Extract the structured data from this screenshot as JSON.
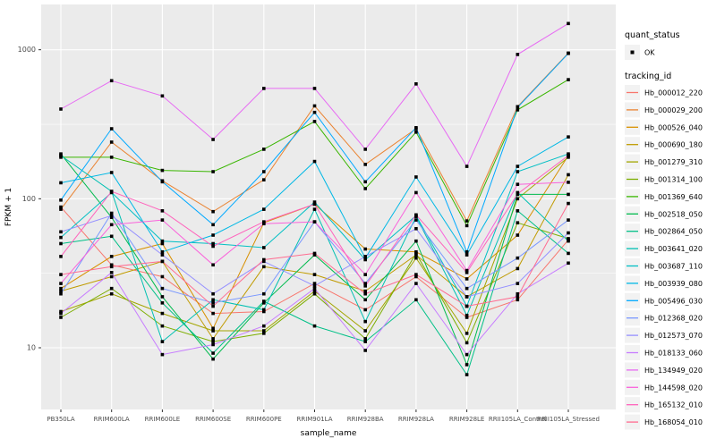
{
  "figure": {
    "xlabel": "sample_name",
    "ylabel": "FPKM + 1"
  },
  "legend": {
    "quant_title": "quant_status",
    "quant_ok_label": "OK",
    "tracking_title": "tracking_id"
  },
  "colors": {
    "panel_bg": "#EBEBEB",
    "grid_major": "#FFFFFF",
    "grid_minor": "#FFFFFF",
    "legend_key_bg": "#F2F2F2",
    "tick_text": "#4D4D4D",
    "axis_title_text": "#000000",
    "point": "#000000"
  },
  "chart_data": {
    "type": "line",
    "title": "",
    "xlabel": "sample_name",
    "ylabel": "FPKM + 1",
    "y_scale": "log10",
    "y_ticks": [
      10,
      100,
      1000
    ],
    "y_minor_ticks": [
      31.6,
      316
    ],
    "ylim": [
      5.5,
      1800
    ],
    "grid": true,
    "legend_position": "right",
    "quant_status": {
      "marker": "black-square",
      "label": "OK"
    },
    "categories": [
      "PB350LA",
      "RRIM600LA",
      "RRIM600LE",
      "RRIM600SE",
      "RRIM600PE",
      "RRIM901LA",
      "RRIM928BA",
      "RRIM928LA",
      "RRIM928LE",
      "RRII105LA_Control",
      "RRII105LA_Stressed"
    ],
    "series": [
      {
        "name": "Hb_000012_220",
        "color": "#F8766D",
        "values": [
          88,
          36,
          30,
          17,
          17.5,
          27,
          18,
          30,
          16,
          21,
          53
        ]
      },
      {
        "name": "Hb_000029_200",
        "color": "#EA8331",
        "values": [
          85,
          240,
          132,
          82,
          134,
          420,
          170,
          295,
          71,
          415,
          950
        ]
      },
      {
        "name": "Hb_000526_040",
        "color": "#D89000",
        "values": [
          25,
          41,
          50,
          13.5,
          69,
          92,
          46,
          44,
          29,
          57,
          195
        ]
      },
      {
        "name": "Hb_000690_180",
        "color": "#C09B00",
        "values": [
          24,
          30,
          38,
          11.5,
          35,
          31,
          24,
          42,
          22,
          34,
          145
        ]
      },
      {
        "name": "Hb_001279_310",
        "color": "#A3A500",
        "values": [
          17.5,
          23,
          17,
          13,
          13,
          24,
          13,
          40,
          12.5,
          100,
          190
        ]
      },
      {
        "name": "Hb_001314_100",
        "color": "#7CAE00",
        "values": [
          16,
          25,
          14,
          11,
          12.5,
          23,
          11.5,
          43,
          10.8,
          69,
          54
        ]
      },
      {
        "name": "Hb_001369_640",
        "color": "#39B600",
        "values": [
          190,
          190,
          155,
          152,
          215,
          330,
          117,
          280,
          66,
          395,
          630
        ]
      },
      {
        "name": "Hb_002518_050",
        "color": "#00BB4E",
        "values": [
          200,
          75,
          22,
          8.4,
          20,
          42,
          21,
          52,
          7.7,
          107,
          107
        ]
      },
      {
        "name": "Hb_002864_050",
        "color": "#00C087",
        "values": [
          50,
          56,
          20,
          9.2,
          20.5,
          14,
          11,
          21,
          6.6,
          83,
          43
        ]
      },
      {
        "name": "Hb_003641_020",
        "color": "#00C0B2",
        "values": [
          195,
          112,
          11,
          21,
          18,
          85,
          15,
          76,
          16.5,
          110,
          52
        ]
      },
      {
        "name": "Hb_003687_110",
        "color": "#00BFC4",
        "values": [
          55,
          110,
          52,
          50,
          47,
          95,
          39,
          77,
          19,
          152,
          200
        ]
      },
      {
        "name": "Hb_003939_080",
        "color": "#00B8E5",
        "values": [
          128,
          150,
          44,
          57,
          85,
          178,
          40,
          140,
          42,
          165,
          260
        ]
      },
      {
        "name": "Hb_005496_030",
        "color": "#00A9FF",
        "values": [
          98,
          295,
          130,
          67,
          152,
          380,
          130,
          300,
          44,
          410,
          945
        ]
      },
      {
        "name": "Hb_012368_020",
        "color": "#7997FF",
        "values": [
          23,
          80,
          25,
          20,
          23,
          70,
          27,
          72,
          25,
          40,
          72
        ]
      },
      {
        "name": "Hb_012573_070",
        "color": "#9590FF",
        "values": [
          60,
          77,
          42,
          23,
          38,
          26,
          41,
          63,
          22,
          27,
          59
        ]
      },
      {
        "name": "Hb_018133_060",
        "color": "#C77CFF",
        "values": [
          17,
          32,
          9,
          10.5,
          14,
          25,
          9.6,
          27,
          9,
          23,
          37
        ]
      },
      {
        "name": "Hb_134949_020",
        "color": "#E76BF3",
        "values": [
          400,
          620,
          490,
          250,
          550,
          550,
          215,
          590,
          165,
          930,
          1500
        ]
      },
      {
        "name": "Hb_144598_020",
        "color": "#FA62DB",
        "values": [
          27,
          67,
          72,
          36,
          68,
          70,
          31,
          110,
          33,
          125,
          129
        ]
      },
      {
        "name": "Hb_165132_010",
        "color": "#FF62BC",
        "values": [
          41,
          112,
          83,
          48,
          70,
          92,
          26,
          78,
          32,
          108,
          195
        ]
      },
      {
        "name": "Hb_168054_010",
        "color": "#FF6C91",
        "values": [
          31,
          35,
          38,
          19,
          39,
          43,
          23,
          31,
          19,
          22,
          93
        ]
      }
    ]
  }
}
